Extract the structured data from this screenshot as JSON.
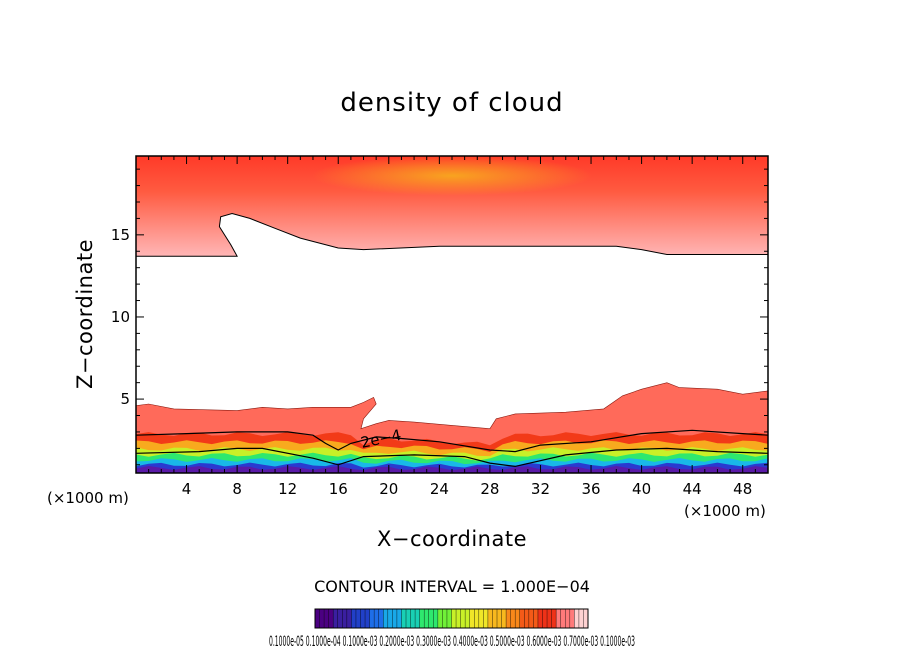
{
  "chart_data": {
    "type": "heatmap",
    "title": "density of cloud",
    "xlabel": "X−coordinate",
    "ylabel": "Z−coordinate",
    "x_unit": "(×1000 m)",
    "z_unit": "(×1000 m)",
    "xlim": [
      0,
      50
    ],
    "ylim": [
      0.5,
      19.8
    ],
    "x_ticks": [
      4,
      8,
      12,
      16,
      20,
      24,
      28,
      32,
      36,
      40,
      44,
      48
    ],
    "y_ticks": [
      5,
      10,
      15
    ],
    "x_tick_labels": [
      "4",
      "8",
      "12",
      "16",
      "20",
      "24",
      "28",
      "32",
      "36",
      "40",
      "44",
      "48"
    ],
    "y_tick_labels": [
      "5",
      "10",
      "15"
    ],
    "contour_interval_text": "CONTOUR INTERVAL = 1.000E−04",
    "contour_label": "2e−4",
    "colorbar_tick_text": "0.1000e-05 0.1000e-04 0.1000e-03 0.2000e-03 0.3000e-03 0.4000e-03 0.5000e-03 0.6000e-03 0.7000e-03 0.1000e-03",
    "colorbar_colors": [
      "#4b0082",
      "#3a1fa0",
      "#2140c8",
      "#1e6ee8",
      "#19a8e8",
      "#19d0b4",
      "#2ee86e",
      "#70f038",
      "#c8f028",
      "#f0e628",
      "#f8b81e",
      "#f8881a",
      "#f45a18",
      "#ee3218",
      "#ff7a7a",
      "#ffd2d2"
    ],
    "upper_layer": {
      "base_z": [
        [
          0,
          13.7
        ],
        [
          3,
          13.7
        ],
        [
          8,
          13.7
        ],
        [
          7.5,
          14.4
        ],
        [
          6.6,
          15.5
        ],
        [
          6.7,
          16.1
        ],
        [
          7.6,
          16.3
        ],
        [
          9,
          16.0
        ],
        [
          11,
          15.4
        ],
        [
          13,
          14.8
        ],
        [
          16,
          14.2
        ],
        [
          18,
          14.1
        ],
        [
          24,
          14.3
        ],
        [
          32,
          14.3
        ],
        [
          38,
          14.3
        ],
        [
          40,
          14.1
        ],
        [
          42,
          13.8
        ],
        [
          50,
          13.8
        ]
      ],
      "top_z": 19.8,
      "colors": [
        "#ff3a28",
        "#ff5a40",
        "#ffb6b6"
      ]
    },
    "lower_layer": {
      "top_z": [
        [
          0,
          4.6
        ],
        [
          1,
          4.7
        ],
        [
          3,
          4.4
        ],
        [
          8,
          4.3
        ],
        [
          10,
          4.5
        ],
        [
          12,
          4.4
        ],
        [
          14,
          4.5
        ],
        [
          17,
          4.5
        ],
        [
          18,
          4.8
        ],
        [
          18.8,
          5.1
        ],
        [
          19,
          4.7
        ],
        [
          18,
          3.8
        ],
        [
          17.8,
          3.2
        ],
        [
          19,
          3.5
        ],
        [
          20,
          3.7
        ],
        [
          22,
          3.6
        ],
        [
          25,
          3.4
        ],
        [
          28,
          3.2
        ],
        [
          28.5,
          3.8
        ],
        [
          30,
          4.1
        ],
        [
          34,
          4.2
        ],
        [
          37,
          4.4
        ],
        [
          38.5,
          5.2
        ],
        [
          40,
          5.6
        ],
        [
          42,
          6.0
        ],
        [
          43,
          5.7
        ],
        [
          46,
          5.6
        ],
        [
          48,
          5.3
        ],
        [
          50,
          5.5
        ]
      ],
      "bottom_z": 0.7,
      "bands": [
        {
          "name": "",
          "color": "#ff6a5a"
        },
        {
          "name": "",
          "color": "#f23a18"
        },
        {
          "name": "",
          "color": "#f8aa1e"
        },
        {
          "name": "",
          "color": "#c8f028"
        },
        {
          "name": "",
          "color": "#2ee86e"
        },
        {
          "name": "",
          "color": "#19b8e8"
        },
        {
          "name": "",
          "color": "#2a3ad0"
        },
        {
          "name": "",
          "color": "#5a1aa8"
        }
      ]
    },
    "contour_lines_z": [
      [
        [
          0,
          2.8
        ],
        [
          4,
          2.9
        ],
        [
          8,
          3.0
        ],
        [
          12,
          3.0
        ],
        [
          14,
          2.8
        ],
        [
          15,
          2.3
        ],
        [
          16,
          1.9
        ],
        [
          17,
          2.3
        ],
        [
          19,
          2.7
        ],
        [
          21,
          2.6
        ],
        [
          24,
          2.4
        ],
        [
          28,
          1.9
        ],
        [
          30,
          1.8
        ],
        [
          32,
          2.2
        ],
        [
          36,
          2.4
        ],
        [
          40,
          2.9
        ],
        [
          44,
          3.1
        ],
        [
          48,
          2.9
        ],
        [
          50,
          2.8
        ]
      ],
      [
        [
          0,
          1.7
        ],
        [
          5,
          1.8
        ],
        [
          8,
          2.0
        ],
        [
          10,
          2.0
        ],
        [
          14,
          1.4
        ],
        [
          16,
          1.0
        ],
        [
          18,
          1.5
        ],
        [
          22,
          1.6
        ],
        [
          26,
          1.5
        ],
        [
          28,
          1.1
        ],
        [
          30,
          0.9
        ],
        [
          34,
          1.6
        ],
        [
          38,
          1.9
        ],
        [
          42,
          2.0
        ],
        [
          46,
          1.8
        ],
        [
          50,
          1.7
        ]
      ]
    ]
  }
}
